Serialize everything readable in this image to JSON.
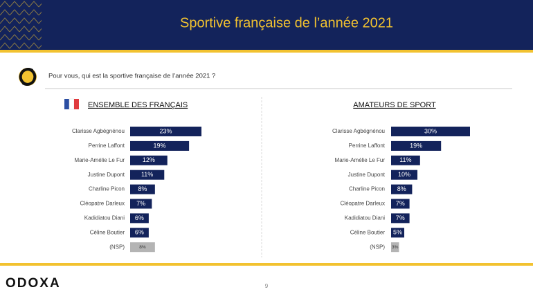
{
  "header": {
    "title": "Sportive française de l’année 2021"
  },
  "question": "Pour vous, qui est la sportive française de l’année 2021 ?",
  "footer": {
    "logo": "ODOXA",
    "page_number": "9"
  },
  "chart_data": [
    {
      "type": "bar",
      "orientation": "horizontal",
      "title": "ENSEMBLE DES FRANÇAIS",
      "categories": [
        "Clarisse Agbégnénou",
        "Perrine Laffont",
        "Marie-Amélie Le Fur",
        "Justine Dupont",
        "Charline Picon",
        "Cléopatre Darleux",
        "Kadidiatou Diani",
        "Céline Boutier",
        "(NSP)"
      ],
      "values": [
        23,
        19,
        12,
        11,
        8,
        7,
        6,
        6,
        8
      ],
      "value_labels": [
        "23%",
        "19%",
        "12%",
        "11%",
        "8%",
        "7%",
        "6%",
        "6%",
        "8%"
      ],
      "colors": [
        "#13235b",
        "#13235b",
        "#13235b",
        "#13235b",
        "#13235b",
        "#13235b",
        "#13235b",
        "#13235b",
        "#b4b4b4"
      ]
    },
    {
      "type": "bar",
      "orientation": "horizontal",
      "title": "AMATEURS DE SPORT",
      "categories": [
        "Clarisse Agbégnénou",
        "Perrine Laffont",
        "Marie-Amélie Le Fur",
        "Justine Dupont",
        "Charline Picon",
        "Cléopatre Darleux",
        "Kadidiatou Diani",
        "Céline Boutier",
        "(NSP)"
      ],
      "values": [
        30,
        19,
        11,
        10,
        8,
        7,
        7,
        5,
        3
      ],
      "value_labels": [
        "30%",
        "19%",
        "11%",
        "10%",
        "8%",
        "7%",
        "7%",
        "5%",
        "3%"
      ],
      "colors": [
        "#13235b",
        "#13235b",
        "#13235b",
        "#13235b",
        "#13235b",
        "#13235b",
        "#13235b",
        "#13235b",
        "#b4b4b4"
      ]
    }
  ]
}
